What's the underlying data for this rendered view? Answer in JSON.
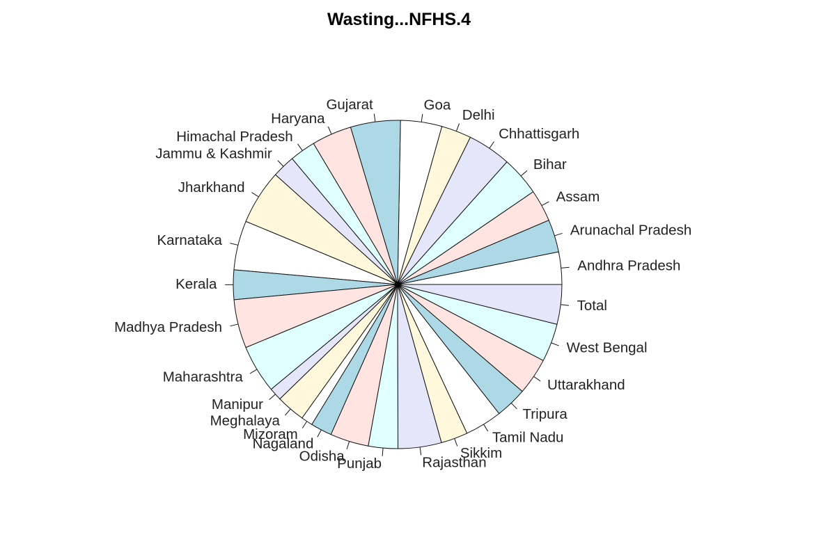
{
  "chart_data": {
    "type": "pie",
    "title": "Wasting...NFHS.4",
    "slices": [
      {
        "label": "Andhra Pradesh",
        "value": 17.2,
        "color": "#FFFFFF"
      },
      {
        "label": "Arunachal Pradesh",
        "value": 17.3,
        "color": "#ADD8E6"
      },
      {
        "label": "Assam",
        "value": 17.0,
        "color": "#FFE4E1"
      },
      {
        "label": "Bihar",
        "value": 20.8,
        "color": "#E0FFFF"
      },
      {
        "label": "Chhattisgarh",
        "value": 23.1,
        "color": "#E6E6FA"
      },
      {
        "label": "Delhi",
        "value": 15.9,
        "color": "#FFF8DC"
      },
      {
        "label": "Goa",
        "value": 21.9,
        "color": "#FFFFFF"
      },
      {
        "label": "Gujarat",
        "value": 26.4,
        "color": "#ADD8E6"
      },
      {
        "label": "Haryana",
        "value": 21.2,
        "color": "#FFE4E1"
      },
      {
        "label": "Himachal Pradesh",
        "value": 13.7,
        "color": "#E0FFFF"
      },
      {
        "label": "Jammu & Kashmir",
        "value": 12.1,
        "color": "#E6E6FA"
      },
      {
        "label": "Jharkhand",
        "value": 29.0,
        "color": "#FFF8DC"
      },
      {
        "label": "Karnataka",
        "value": 26.1,
        "color": "#FFFFFF"
      },
      {
        "label": "Kerala",
        "value": 15.7,
        "color": "#ADD8E6"
      },
      {
        "label": "Madhya Pradesh",
        "value": 25.8,
        "color": "#FFE4E1"
      },
      {
        "label": "Maharashtra",
        "value": 25.6,
        "color": "#E0FFFF"
      },
      {
        "label": "Manipur",
        "value": 6.8,
        "color": "#E6E6FA"
      },
      {
        "label": "Meghalaya",
        "value": 15.3,
        "color": "#FFF8DC"
      },
      {
        "label": "Mizoram",
        "value": 6.1,
        "color": "#FFFFFF"
      },
      {
        "label": "Nagaland",
        "value": 11.3,
        "color": "#ADD8E6"
      },
      {
        "label": "Odisha",
        "value": 20.4,
        "color": "#FFE4E1"
      },
      {
        "label": "Punjab",
        "value": 15.6,
        "color": "#E0FFFF"
      },
      {
        "label": "Rajasthan",
        "value": 23.0,
        "color": "#E6E6FA"
      },
      {
        "label": "Sikkim",
        "value": 14.2,
        "color": "#FFF8DC"
      },
      {
        "label": "Tamil Nadu",
        "value": 19.7,
        "color": "#FFFFFF"
      },
      {
        "label": "Tripura",
        "value": 16.8,
        "color": "#ADD8E6"
      },
      {
        "label": "Uttarakhand",
        "value": 19.5,
        "color": "#FFE4E1"
      },
      {
        "label": "West Bengal",
        "value": 20.3,
        "color": "#E0FFFF"
      },
      {
        "label": "Total",
        "value": 21.0,
        "color": "#E6E6FA"
      }
    ]
  }
}
